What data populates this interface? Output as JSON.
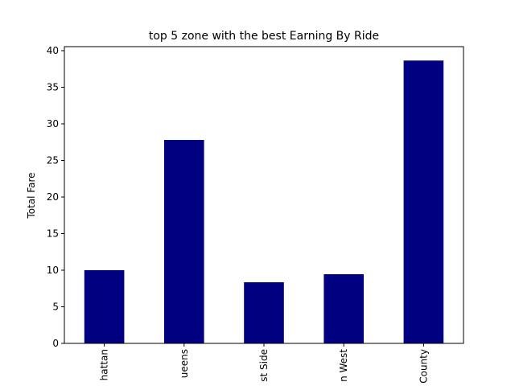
{
  "chart_data": {
    "type": "bar",
    "title": "top 5 zone with the best Earning By Ride",
    "ylabel": "Total Fare",
    "categories": [
      "hattan",
      "ueens",
      "st Side",
      "n West",
      "County"
    ],
    "values": [
      10.0,
      27.8,
      8.35,
      9.45,
      38.65
    ],
    "color": "#000080",
    "ylim": [
      0,
      40.55
    ],
    "yticks": [
      0,
      5,
      10,
      15,
      20,
      25,
      30,
      35,
      40
    ],
    "grid": false
  }
}
